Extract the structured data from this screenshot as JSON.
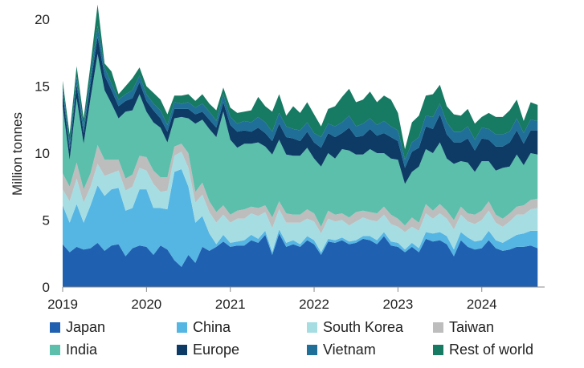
{
  "chart_data": {
    "type": "area",
    "stacked": true,
    "ylabel": "Million tonnes",
    "xlabel": "",
    "ylim": [
      0,
      20
    ],
    "yticks": [
      0,
      5,
      10,
      15,
      20
    ],
    "xlim": [
      2019.0,
      2024.75
    ],
    "xticks": [
      "2019",
      "2020",
      "2021",
      "2022",
      "2023",
      "2024"
    ],
    "grid": false,
    "legend_position": "bottom",
    "x": [
      2019.0,
      2019.083,
      2019.167,
      2019.25,
      2019.333,
      2019.417,
      2019.5,
      2019.583,
      2019.667,
      2019.75,
      2019.833,
      2019.917,
      2020.0,
      2020.083,
      2020.167,
      2020.25,
      2020.333,
      2020.417,
      2020.5,
      2020.583,
      2020.667,
      2020.75,
      2020.833,
      2020.917,
      2021.0,
      2021.083,
      2021.167,
      2021.25,
      2021.333,
      2021.417,
      2021.5,
      2021.583,
      2021.667,
      2021.75,
      2021.833,
      2021.917,
      2022.0,
      2022.083,
      2022.167,
      2022.25,
      2022.333,
      2022.417,
      2022.5,
      2022.583,
      2022.667,
      2022.75,
      2022.833,
      2022.917,
      2023.0,
      2023.083,
      2023.167,
      2023.25,
      2023.333,
      2023.417,
      2023.5,
      2023.583,
      2023.667,
      2023.75,
      2023.833,
      2023.917,
      2024.0,
      2024.083,
      2024.167,
      2024.25,
      2024.333,
      2024.417,
      2024.5,
      2024.583,
      2024.667
    ],
    "series": [
      {
        "name": "Japan",
        "color": "#2060b0",
        "values": [
          3.2,
          2.6,
          3.0,
          2.8,
          2.9,
          3.3,
          2.7,
          3.1,
          3.2,
          2.3,
          2.9,
          3.1,
          3.0,
          2.4,
          3.1,
          2.8,
          2.0,
          1.5,
          2.4,
          1.8,
          3.0,
          2.7,
          3.0,
          3.4,
          3.0,
          3.1,
          3.1,
          3.5,
          3.3,
          3.9,
          2.4,
          4.0,
          3.0,
          3.2,
          3.0,
          3.5,
          3.2,
          2.4,
          3.4,
          3.3,
          3.5,
          3.2,
          3.3,
          3.6,
          3.5,
          3.2,
          3.8,
          3.1,
          3.0,
          2.6,
          3.0,
          2.6,
          3.6,
          3.4,
          3.5,
          3.2,
          2.3,
          3.5,
          3.0,
          2.8,
          2.9,
          3.5,
          2.9,
          2.7,
          2.8,
          3.0,
          3.0,
          3.1,
          2.9
        ]
      },
      {
        "name": "China",
        "color": "#55b5e3",
        "values": [
          2.9,
          2.2,
          3.2,
          2.0,
          3.2,
          4.3,
          4.1,
          4.2,
          4.2,
          3.4,
          3.0,
          4.2,
          4.3,
          3.5,
          2.8,
          3.0,
          6.6,
          7.3,
          5.1,
          3.0,
          2.3,
          1.3,
          0.2,
          0.5,
          0.3,
          0.3,
          0.4,
          0.4,
          0.3,
          0.3,
          0.2,
          0.3,
          0.3,
          0.3,
          0.2,
          0.3,
          0.3,
          0.2,
          0.2,
          0.2,
          0.2,
          0.2,
          0.2,
          0.2,
          0.3,
          0.3,
          0.3,
          0.3,
          0.3,
          0.2,
          0.3,
          0.3,
          0.5,
          0.6,
          0.6,
          0.6,
          0.5,
          0.6,
          0.7,
          0.6,
          0.6,
          0.7,
          0.6,
          0.6,
          0.8,
          0.9,
          1.0,
          1.1,
          1.3
        ]
      },
      {
        "name": "South Korea",
        "color": "#a6dde3",
        "values": [
          1.2,
          1.6,
          1.9,
          1.5,
          1.4,
          1.6,
          1.5,
          1.2,
          1.3,
          1.5,
          1.6,
          1.6,
          1.4,
          1.8,
          1.2,
          1.4,
          1.2,
          1.3,
          1.4,
          1.5,
          1.6,
          1.6,
          1.6,
          1.5,
          1.5,
          1.7,
          1.6,
          1.6,
          1.7,
          1.4,
          1.8,
          1.5,
          1.5,
          1.3,
          1.6,
          1.3,
          1.4,
          1.4,
          1.5,
          1.4,
          1.3,
          1.2,
          1.4,
          1.4,
          1.2,
          1.4,
          1.3,
          1.3,
          1.2,
          1.3,
          1.2,
          1.3,
          1.4,
          1.1,
          1.4,
          1.3,
          1.5,
          1.3,
          1.2,
          1.3,
          1.5,
          1.5,
          1.3,
          1.2,
          1.3,
          1.5,
          1.4,
          1.6,
          1.7
        ]
      },
      {
        "name": "Taiwan",
        "color": "#bdbdbd",
        "values": [
          1.2,
          1.1,
          1.2,
          1.0,
          1.0,
          1.4,
          1.2,
          1.0,
          0.8,
          0.9,
          0.9,
          0.9,
          1.0,
          1.0,
          1.1,
          1.0,
          0.7,
          0.6,
          1.1,
          0.8,
          0.9,
          0.8,
          0.8,
          0.7,
          0.6,
          0.6,
          0.7,
          0.5,
          0.6,
          0.5,
          0.8,
          0.6,
          0.7,
          0.6,
          0.6,
          0.7,
          0.6,
          0.5,
          0.6,
          0.5,
          0.5,
          0.6,
          0.7,
          0.5,
          0.6,
          0.6,
          0.6,
          0.7,
          0.6,
          0.5,
          0.7,
          0.6,
          0.7,
          0.6,
          0.7,
          0.6,
          0.7,
          0.6,
          0.6,
          0.7,
          0.7,
          0.7,
          0.6,
          0.6,
          0.6,
          0.6,
          0.7,
          0.7,
          0.7
        ]
      },
      {
        "name": "India",
        "color": "#5bbfab",
        "values": [
          5.0,
          2.0,
          4.8,
          3.4,
          5.6,
          6.8,
          5.2,
          4.2,
          3.1,
          5.0,
          4.8,
          4.6,
          3.4,
          3.6,
          3.7,
          2.6,
          2.1,
          2.0,
          2.6,
          5.1,
          4.7,
          5.4,
          5.6,
          7.0,
          5.6,
          4.7,
          4.9,
          4.7,
          4.9,
          4.4,
          4.7,
          4.6,
          4.4,
          4.4,
          4.4,
          4.6,
          4.1,
          4.5,
          4.3,
          4.2,
          4.8,
          5.0,
          4.3,
          4.2,
          4.7,
          4.5,
          4.0,
          4.2,
          4.4,
          3.1,
          3.4,
          4.2,
          4.1,
          4.3,
          4.6,
          3.9,
          4.2,
          3.4,
          3.8,
          3.2,
          3.7,
          3.0,
          3.3,
          3.8,
          3.5,
          3.9,
          3.0,
          3.5,
          3.3
        ]
      },
      {
        "name": "Europe",
        "color": "#0d3b66",
        "values": [
          1.0,
          0.8,
          1.0,
          0.8,
          1.1,
          1.3,
          1.1,
          1.0,
          0.9,
          0.8,
          0.9,
          0.9,
          0.8,
          0.9,
          0.7,
          0.8,
          0.7,
          0.6,
          0.7,
          0.7,
          0.6,
          0.7,
          0.7,
          0.7,
          1.1,
          1.2,
          1.0,
          0.9,
          1.1,
          1.0,
          1.0,
          1.2,
          1.3,
          1.3,
          1.1,
          1.2,
          1.2,
          1.4,
          1.5,
          1.6,
          1.2,
          1.7,
          1.3,
          1.4,
          1.5,
          1.3,
          1.5,
          1.6,
          1.4,
          1.2,
          1.5,
          1.4,
          1.7,
          1.8,
          2.1,
          1.8,
          1.6,
          1.4,
          1.8,
          1.6,
          1.7,
          1.6,
          1.8,
          1.6,
          1.8,
          1.8,
          1.6,
          1.7,
          1.8
        ]
      },
      {
        "name": "Vietnam",
        "color": "#1f6f99",
        "values": [
          0.5,
          0.4,
          0.6,
          0.5,
          0.6,
          0.8,
          0.6,
          0.5,
          0.5,
          0.5,
          0.6,
          0.5,
          0.5,
          0.5,
          0.6,
          0.5,
          0.5,
          0.4,
          0.5,
          0.5,
          0.6,
          0.6,
          0.5,
          0.6,
          0.6,
          0.6,
          0.7,
          0.7,
          0.8,
          0.8,
          0.7,
          0.8,
          0.8,
          0.7,
          0.8,
          0.7,
          0.7,
          0.8,
          0.7,
          0.8,
          0.8,
          0.9,
          0.8,
          0.9,
          0.8,
          0.8,
          0.9,
          0.8,
          0.8,
          0.6,
          0.7,
          0.8,
          0.8,
          0.9,
          0.8,
          0.9,
          0.8,
          0.8,
          0.9,
          0.8,
          0.8,
          0.8,
          0.9,
          0.9,
          0.8,
          0.9,
          0.8,
          0.8,
          0.7
        ]
      },
      {
        "name": "Rest of world",
        "color": "#177a63",
        "values": [
          0.4,
          0.7,
          0.8,
          0.6,
          0.8,
          1.6,
          0.3,
          0.9,
          0.4,
          0.6,
          0.9,
          0.6,
          0.6,
          0.8,
          0.8,
          0.8,
          0.5,
          0.6,
          0.6,
          0.5,
          0.7,
          0.6,
          0.8,
          0.5,
          0.7,
          0.8,
          0.7,
          0.9,
          1.5,
          1.2,
          1.5,
          1.4,
          0.8,
          1.7,
          1.3,
          1.5,
          1.4,
          0.8,
          1.1,
          1.5,
          1.9,
          2.0,
          1.8,
          1.8,
          2.0,
          1.7,
          1.9,
          2.0,
          1.3,
          0.8,
          1.5,
          1.6,
          1.5,
          1.7,
          1.4,
          1.2,
          1.3,
          1.2,
          1.3,
          1.2,
          0.8,
          1.2,
          1.3,
          1.3,
          1.6,
          1.4,
          0.9,
          1.3,
          1.2
        ]
      }
    ]
  }
}
